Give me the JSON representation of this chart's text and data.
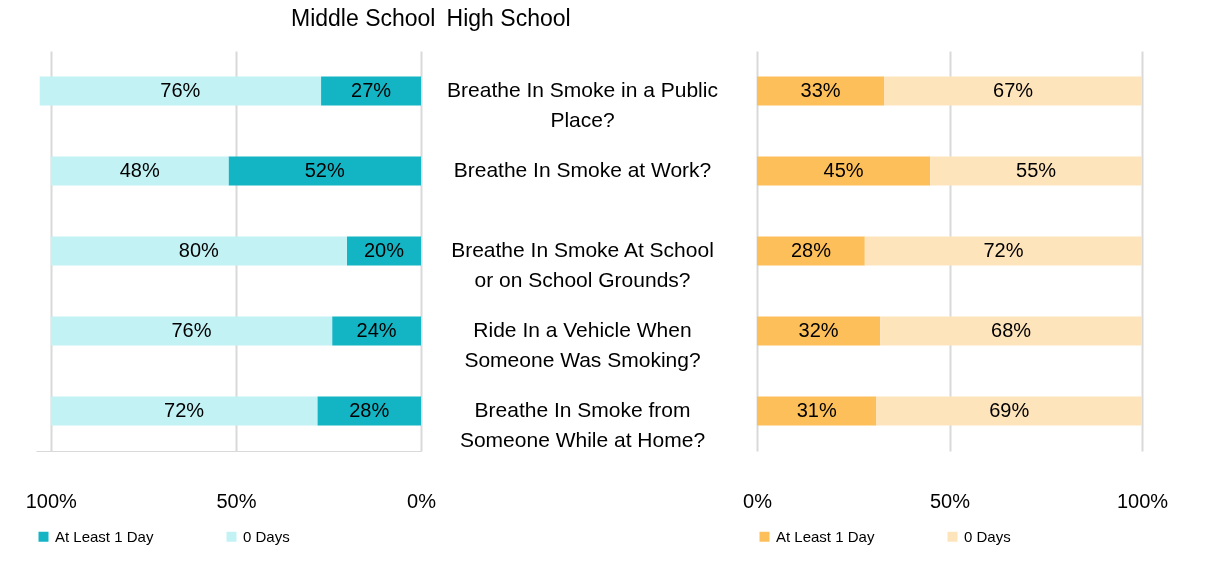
{
  "chart_data": [
    {
      "type": "bar",
      "orientation": "horizontal",
      "stacked": true,
      "title": "Middle School",
      "categories": [
        null,
        null,
        null,
        null,
        null
      ],
      "series": [
        {
          "name": "At Least 1 Day",
          "color": "#13b5c4",
          "values": [
            27,
            52,
            20,
            24,
            28
          ],
          "value_labels": [
            "27%",
            "52%",
            "20%",
            "24%",
            "28%"
          ]
        },
        {
          "name": "0 Days",
          "color": "#c3f2f5",
          "values": [
            76,
            48,
            80,
            76,
            72
          ],
          "value_labels": [
            "76%",
            "48%",
            "80%",
            "76%",
            "72%"
          ]
        }
      ],
      "xlim": [
        104,
        0
      ],
      "xticks": [
        {
          "value": 100,
          "label": "100%"
        },
        {
          "value": 50,
          "label": "50%"
        },
        {
          "value": 0,
          "label": "0%"
        }
      ],
      "grid": "x",
      "legend": "bottom",
      "tick_labels": "x"
    },
    {
      "type": "bar",
      "orientation": "horizontal",
      "stacked": true,
      "title": "High School",
      "categories": [
        "Breathe In Smoke in a Public Place?",
        "Breathe In Smoke at Work?",
        "Breathe In Smoke At School or on School Grounds?",
        "Ride In a Vehicle When Someone Was Smoking?",
        "Breathe In Smoke from Someone While at Home?"
      ],
      "series": [
        {
          "name": "At Least 1 Day",
          "color": "#fdbf5a",
          "values": [
            33,
            45,
            28,
            32,
            31
          ],
          "value_labels": [
            "33%",
            "45%",
            "28%",
            "32%",
            "31%"
          ]
        },
        {
          "name": "0 Days",
          "color": "#fee4bb",
          "values": [
            67,
            55,
            72,
            68,
            69
          ],
          "value_labels": [
            "67%",
            "55%",
            "72%",
            "68%",
            "69%"
          ]
        }
      ],
      "xlim": [
        0,
        100
      ],
      "xticks": [
        {
          "value": 0,
          "label": "0%"
        },
        {
          "value": 50,
          "label": "50%"
        },
        {
          "value": 100,
          "label": "100%"
        }
      ],
      "grid": "x",
      "legend": "bottom"
    }
  ]
}
